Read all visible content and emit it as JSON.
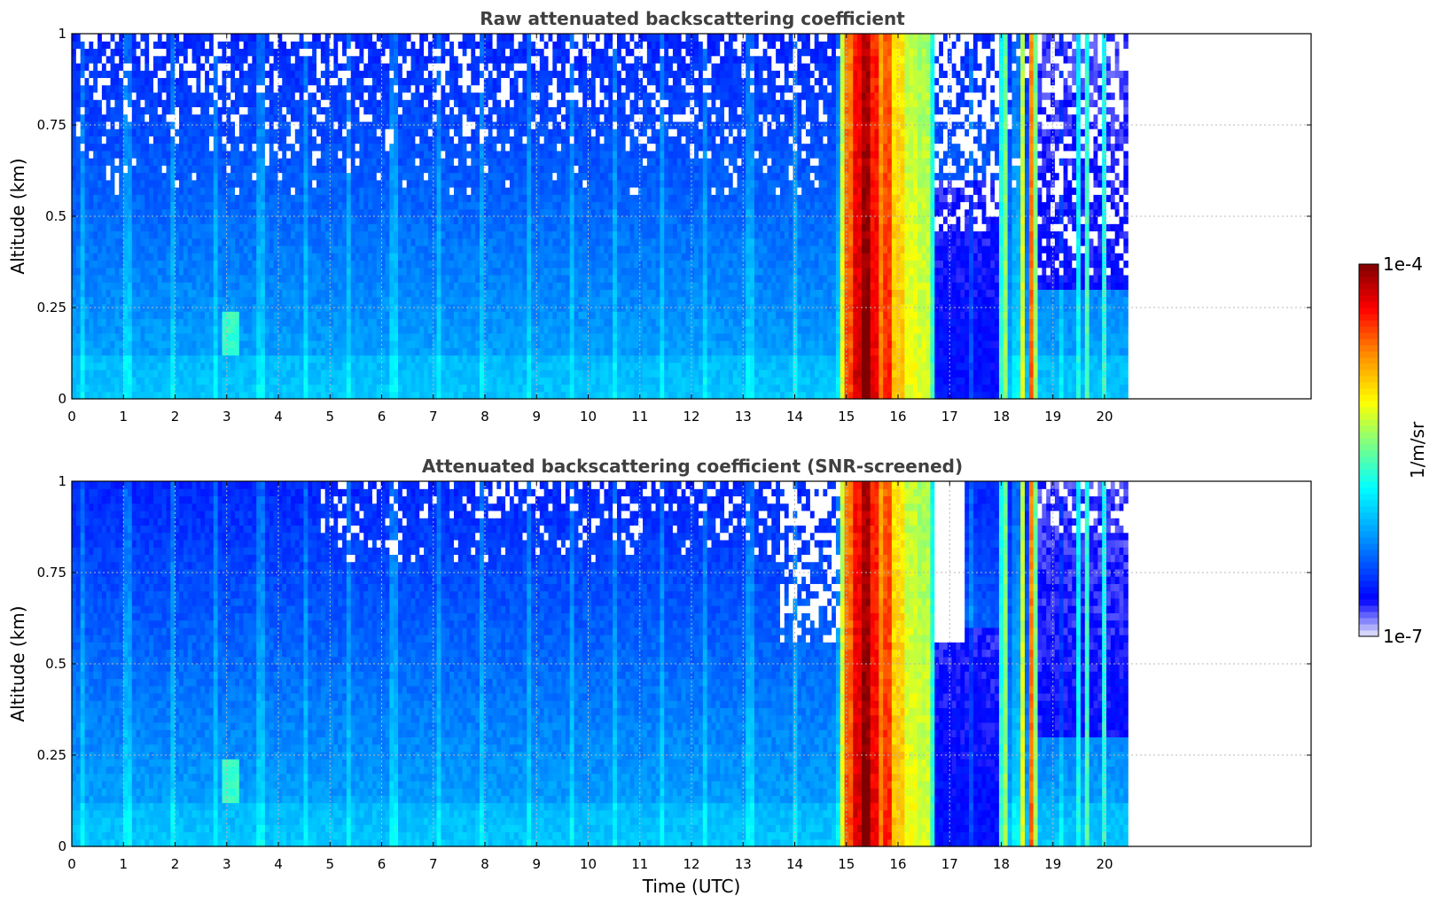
{
  "chart_data": [
    {
      "type": "heatmap",
      "title": "Raw attenuated backscattering coefficient",
      "xlabel": "",
      "ylabel": "Altitude (km)",
      "xlim": [
        0,
        24
      ],
      "ylim": [
        0,
        1
      ],
      "xticks": [
        "0",
        "1",
        "2",
        "3",
        "4",
        "5",
        "6",
        "7",
        "8",
        "9",
        "10",
        "11",
        "12",
        "13",
        "14",
        "15",
        "16",
        "17",
        "18",
        "19",
        "20"
      ],
      "yticks": [
        {
          "v": 0,
          "label": "0"
        },
        {
          "v": 0.25,
          "label": "0.25"
        },
        {
          "v": 0.5,
          "label": "0.5"
        },
        {
          "v": 0.75,
          "label": "0.75"
        },
        {
          "v": 1,
          "label": "1"
        }
      ],
      "grid": true,
      "data_end_hour": 20.45,
      "screened": false,
      "features": [
        {
          "kind": "dense-aerosol-or-rain",
          "x_range": [
            14.9,
            16.6
          ],
          "peak_x": 15.35
        },
        {
          "kind": "intermittent-layers",
          "x_range": [
            17.9,
            18.7
          ]
        },
        {
          "kind": "thin-columns",
          "x": [
            19.5,
            19.65,
            20.0
          ]
        },
        {
          "kind": "aerosol-plume",
          "x": 3.1,
          "y": 0.18
        }
      ]
    },
    {
      "type": "heatmap",
      "title": "Attenuated backscattering coefficient (SNR-screened)",
      "xlabel": "Time (UTC)",
      "ylabel": "Altitude (km)",
      "xlim": [
        0,
        24
      ],
      "ylim": [
        0,
        1
      ],
      "xticks": [
        "0",
        "1",
        "2",
        "3",
        "4",
        "5",
        "6",
        "7",
        "8",
        "9",
        "10",
        "11",
        "12",
        "13",
        "14",
        "15",
        "16",
        "17",
        "18",
        "19",
        "20"
      ],
      "yticks": [
        {
          "v": 0,
          "label": "0"
        },
        {
          "v": 0.25,
          "label": "0.25"
        },
        {
          "v": 0.5,
          "label": "0.5"
        },
        {
          "v": 0.75,
          "label": "0.75"
        },
        {
          "v": 1,
          "label": "1"
        }
      ],
      "grid": true,
      "data_end_hour": 20.45,
      "screened": true,
      "features": [
        {
          "kind": "dense-aerosol-or-rain",
          "x_range": [
            14.9,
            16.6
          ],
          "peak_x": 15.35
        },
        {
          "kind": "intermittent-layers",
          "x_range": [
            17.9,
            18.7
          ]
        },
        {
          "kind": "thin-columns",
          "x": [
            19.5,
            19.65,
            20.0
          ]
        },
        {
          "kind": "aerosol-plume",
          "x": 3.1,
          "y": 0.18
        }
      ]
    }
  ],
  "colorbar": {
    "label": "1/m/sr",
    "max_label": "1e-4",
    "min_label": "1e-7",
    "min": 1e-07,
    "max": 0.0001,
    "scale": "log",
    "colormap": "jet",
    "colors": [
      "#e8e8fa",
      "#0000ff",
      "#00a0ff",
      "#00ffff",
      "#80ff80",
      "#ffff00",
      "#ff8000",
      "#ff0000",
      "#800000"
    ]
  }
}
